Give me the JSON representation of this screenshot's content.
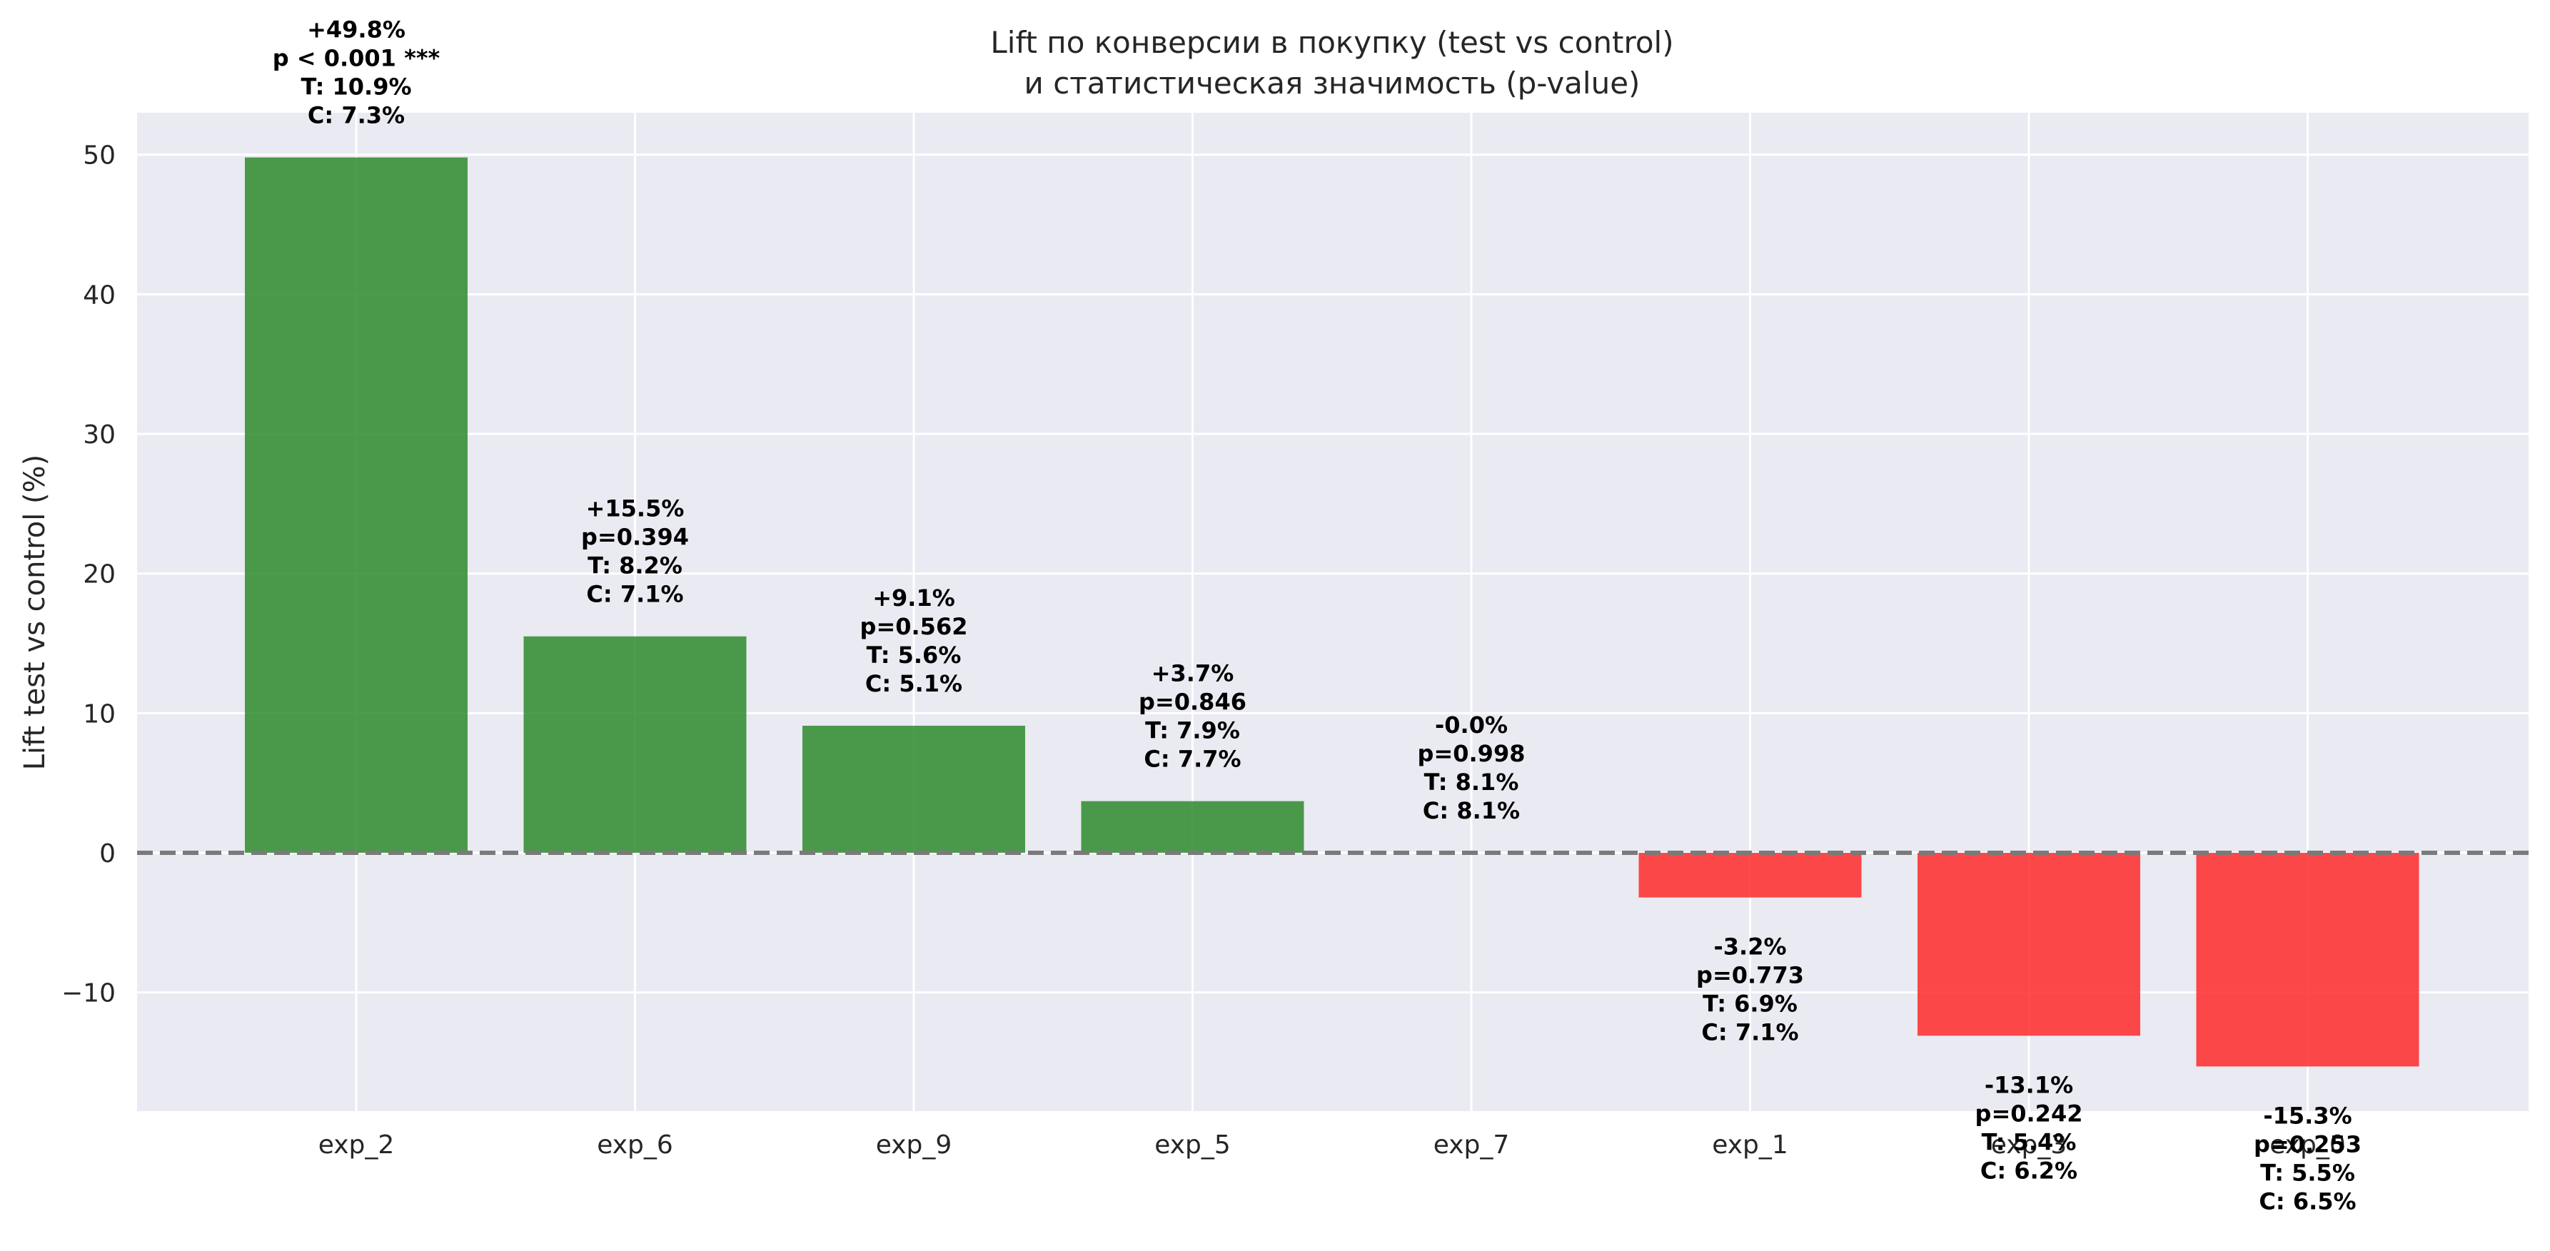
{
  "chart_data": {
    "type": "bar",
    "title": "Lift по конверсии в покупку (test vs control)",
    "subtitle": "и статистическая значимость (p-value)",
    "ylabel": "Lift test vs control (%)",
    "xlabel": "",
    "ylim": [
      -18.5,
      53
    ],
    "yticks": [
      -10,
      0,
      10,
      20,
      30,
      40,
      50
    ],
    "ytick_labels": [
      "−10",
      "0",
      "10",
      "20",
      "30",
      "40",
      "50"
    ],
    "grid": true,
    "reference_line": 0,
    "categories": [
      "exp_2",
      "exp_6",
      "exp_9",
      "exp_5",
      "exp_7",
      "exp_1",
      "exp_3",
      "exp_0"
    ],
    "values": [
      49.8,
      15.5,
      9.1,
      3.7,
      -0.0,
      -3.2,
      -13.1,
      -15.3
    ],
    "annotations": [
      {
        "lift": "+49.8%",
        "p": "p < 0.001 ***",
        "t": "T: 10.9%",
        "c": "C: 7.3%"
      },
      {
        "lift": "+15.5%",
        "p": "p=0.394",
        "t": "T: 8.2%",
        "c": "C: 7.1%"
      },
      {
        "lift": "+9.1%",
        "p": "p=0.562",
        "t": "T: 5.6%",
        "c": "C: 5.1%"
      },
      {
        "lift": "+3.7%",
        "p": "p=0.846",
        "t": "T: 7.9%",
        "c": "C: 7.7%"
      },
      {
        "lift": "-0.0%",
        "p": "p=0.998",
        "t": "T: 8.1%",
        "c": "C: 8.1%"
      },
      {
        "lift": "-3.2%",
        "p": "p=0.773",
        "t": "T: 6.9%",
        "c": "C: 7.1%"
      },
      {
        "lift": "-13.1%",
        "p": "p=0.242",
        "t": "T: 5.4%",
        "c": "C: 6.2%"
      },
      {
        "lift": "-15.3%",
        "p": "p=0.253",
        "t": "T: 5.5%",
        "c": "C: 6.5%"
      }
    ],
    "colors": {
      "positive": "#2e8b2e",
      "negative": "#ff2a2a",
      "background": "#eaeaf2",
      "grid": "#ffffff",
      "zero_line": "#7a7a7a"
    }
  }
}
